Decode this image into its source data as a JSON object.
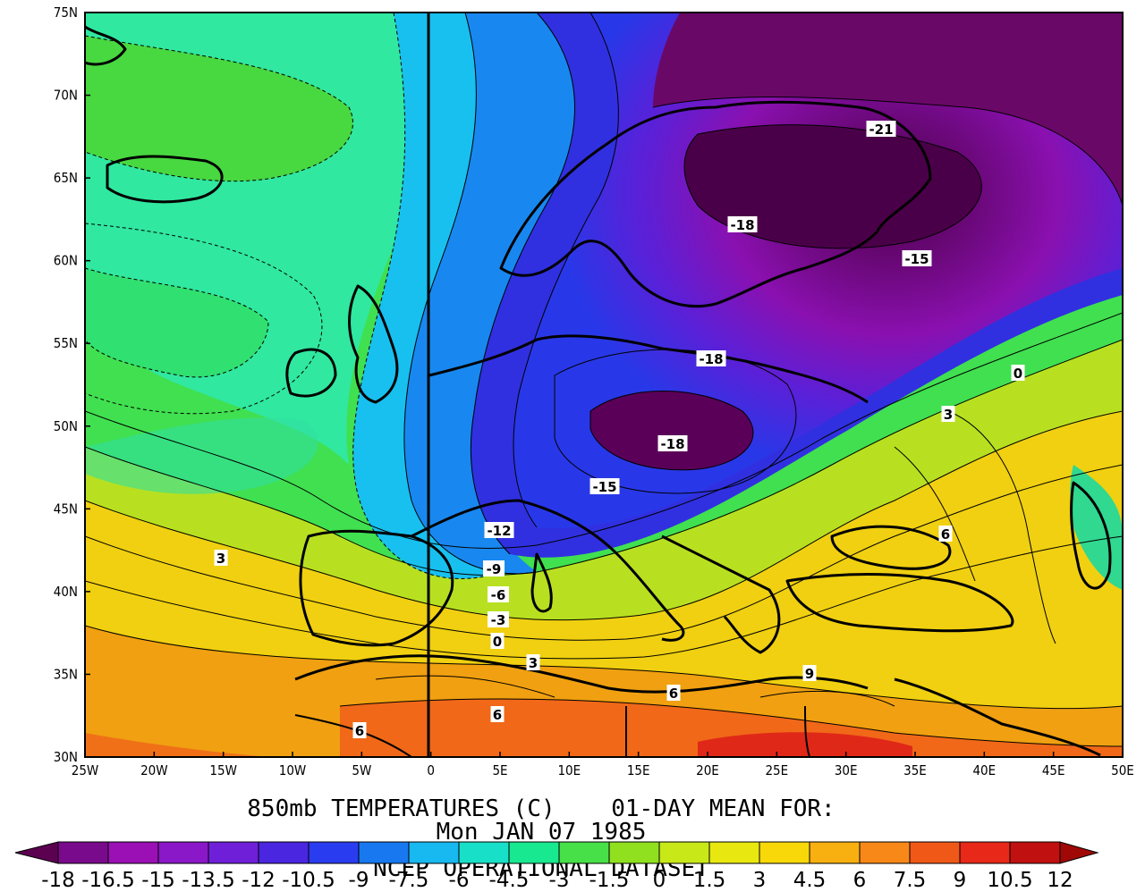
{
  "title": {
    "line1": "850mb TEMPERATURES (C)    01-DAY MEAN FOR:",
    "line2": "Mon JAN 07 1985",
    "line3": "NCEP OPERATIONAL DATASET"
  },
  "axes": {
    "lon_labels": [
      "25W",
      "20W",
      "15W",
      "10W",
      "5W",
      "0",
      "5E",
      "10E",
      "15E",
      "20E",
      "25E",
      "30E",
      "35E",
      "40E",
      "45E",
      "50E"
    ],
    "lat_labels": [
      "75N",
      "70N",
      "65N",
      "60N",
      "55N",
      "50N",
      "45N",
      "40N",
      "35N",
      "30N"
    ]
  },
  "contour_labels": [
    "-21",
    "-18",
    "-15",
    "-18",
    "-18",
    "-15",
    "-12",
    "-9",
    "-6",
    "-3",
    "0",
    "3",
    "6",
    "6",
    "9",
    "6",
    "3",
    "0",
    "3",
    "6"
  ],
  "colorbar": {
    "labels": [
      "-18",
      "-16.5",
      "-15",
      "-13.5",
      "-12",
      "-10.5",
      "-9",
      "-7.5",
      "-6",
      "-4.5",
      "-3",
      "-1.5",
      "0",
      "1.5",
      "3",
      "4.5",
      "6",
      "7.5",
      "9",
      "10.5",
      "12"
    ],
    "colors": [
      "#5c0050",
      "#7a0a8c",
      "#9a10b4",
      "#8a18c8",
      "#6f1fd8",
      "#4a26e0",
      "#2a3cf0",
      "#1878f0",
      "#18b8f0",
      "#18e0c8",
      "#18e890",
      "#48e048",
      "#90e020",
      "#c8e818",
      "#e8e810",
      "#f8d808",
      "#f8b010",
      "#f88818",
      "#f05818",
      "#e82818",
      "#c01010",
      "#a00808"
    ]
  }
}
